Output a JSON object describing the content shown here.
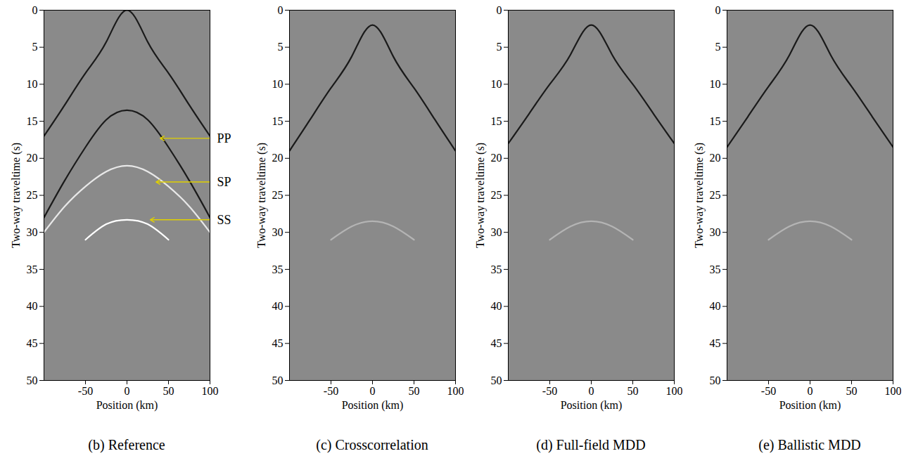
{
  "chart_data": [
    {
      "type": "line",
      "title": "(b) Reference",
      "xlabel": "Position (km)",
      "ylabel": "Two-way traveltime (s)",
      "xlim": [
        -100,
        100
      ],
      "xticks": [
        -50,
        0,
        50,
        100
      ],
      "ylim": [
        0,
        50
      ],
      "yticks": [
        0,
        5,
        10,
        15,
        20,
        25,
        30,
        35,
        40,
        45,
        50
      ],
      "color": "#8a8a8a",
      "x": [
        -100,
        -75,
        -50,
        -25,
        0,
        25,
        50,
        75,
        100
      ],
      "series": [
        {
          "color": "#1a1a1a",
          "values": [
            17,
            12.8,
            8.5,
            4.3,
            0,
            4.3,
            8.5,
            12.8,
            17
          ]
        },
        {
          "color": "#1a1a1a",
          "values": [
            28,
            23,
            18.5,
            14.8,
            13.5,
            14.8,
            18.5,
            23,
            28
          ]
        },
        {
          "color": "#e8e8e8",
          "values": [
            30,
            26.5,
            23.8,
            21.8,
            21,
            21.8,
            23.8,
            26.5,
            30
          ]
        },
        {
          "color": "#ffffff",
          "values": [
            null,
            null,
            31,
            28.9,
            28.3,
            28.9,
            31,
            null,
            null
          ]
        }
      ],
      "annotations": [
        {
          "text": "PP",
          "x": 40,
          "y": 17.3,
          "color": "#e0d000"
        },
        {
          "text": "SP",
          "x": 35,
          "y": 23.2,
          "color": "#e0d000"
        },
        {
          "text": "SS",
          "x": 28,
          "y": 28.3,
          "color": "#e0d000"
        }
      ]
    },
    {
      "type": "line",
      "title": "(c) Crosscorrelation",
      "xlabel": "Position (km)",
      "ylabel": "Two-way traveltime (s)",
      "xlim": [
        -100,
        100
      ],
      "xticks": [
        -50,
        0,
        50,
        100
      ],
      "ylim": [
        0,
        50
      ],
      "yticks": [
        0,
        5,
        10,
        15,
        20,
        25,
        30,
        35,
        40,
        45,
        50
      ],
      "color": "#8a8a8a",
      "x": [
        -100,
        -75,
        -50,
        -25,
        0,
        25,
        50,
        75,
        100
      ],
      "series": [
        {
          "color": "#1a1a1a",
          "values": [
            19,
            14.75,
            10.5,
            6.25,
            2,
            6.25,
            10.5,
            14.75,
            19
          ]
        },
        {
          "color": "#b4b4b4",
          "values": [
            null,
            null,
            31,
            29.2,
            28.5,
            29.2,
            31,
            null,
            null
          ]
        }
      ]
    },
    {
      "type": "line",
      "title": "(d) Full-field MDD",
      "xlabel": "Position (km)",
      "ylabel": "Two-way traveltime (s)",
      "xlim": [
        -100,
        100
      ],
      "xticks": [
        -50,
        0,
        50,
        100
      ],
      "ylim": [
        0,
        50
      ],
      "yticks": [
        0,
        5,
        10,
        15,
        20,
        25,
        30,
        35,
        40,
        45,
        50
      ],
      "color": "#8a8a8a",
      "x": [
        -100,
        -75,
        -50,
        -25,
        0,
        25,
        50,
        75,
        100
      ],
      "series": [
        {
          "color": "#1a1a1a",
          "values": [
            18,
            14,
            10,
            6,
            2,
            6,
            10,
            14,
            18
          ]
        },
        {
          "color": "#b4b4b4",
          "values": [
            null,
            null,
            31,
            29.2,
            28.5,
            29.2,
            31,
            null,
            null
          ]
        }
      ]
    },
    {
      "type": "line",
      "title": "(e) Ballistic MDD",
      "xlabel": "Position (km)",
      "ylabel": "Two-way traveltime (s)",
      "xlim": [
        -100,
        100
      ],
      "xticks": [
        -50,
        0,
        50,
        100
      ],
      "ylim": [
        0,
        50
      ],
      "yticks": [
        0,
        5,
        10,
        15,
        20,
        25,
        30,
        35,
        40,
        45,
        50
      ],
      "color": "#8a8a8a",
      "x": [
        -100,
        -75,
        -50,
        -25,
        0,
        25,
        50,
        75,
        100
      ],
      "series": [
        {
          "color": "#1a1a1a",
          "values": [
            18.5,
            14.4,
            10.3,
            6.1,
            2,
            6.1,
            10.3,
            14.4,
            18.5
          ]
        },
        {
          "color": "#b4b4b4",
          "values": [
            null,
            null,
            31,
            29.2,
            28.5,
            29.2,
            31,
            null,
            null
          ]
        }
      ]
    }
  ]
}
